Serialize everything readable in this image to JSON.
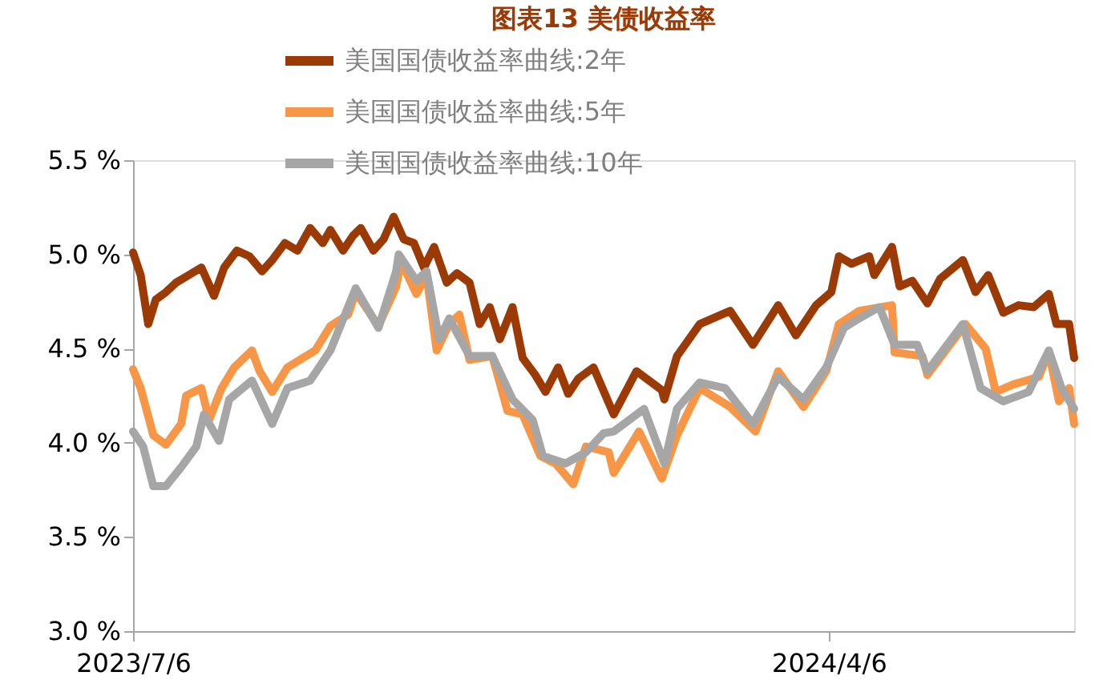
{
  "chart_data": {
    "type": "line",
    "title": "图表13 美债收益率",
    "legend": "top",
    "grid": false,
    "line_style": "solid",
    "xlim": [
      "2023-07-06",
      "2024-07-12"
    ],
    "xticks": [
      {
        "value": "2023-07-06",
        "label": "2023/7/6"
      },
      {
        "value": "2024-04-06",
        "label": "2024/4/6"
      }
    ],
    "ylim": [
      3.0,
      5.5
    ],
    "yticks": [
      {
        "value": 3.0,
        "label": "3.0 %"
      },
      {
        "value": 3.5,
        "label": "3.5 %"
      },
      {
        "value": 4.0,
        "label": "4.0 %"
      },
      {
        "value": 4.5,
        "label": "4.5 %"
      },
      {
        "value": 5.0,
        "label": "5.0 %"
      },
      {
        "value": 5.5,
        "label": "5.5 %"
      }
    ],
    "series": [
      {
        "name": "美国国债收益率曲线:2年",
        "color": "#9c3a06",
        "x": [
          "2023-07-06",
          "2023-07-09",
          "2023-07-12",
          "2023-07-15",
          "2023-07-19",
          "2023-07-23",
          "2023-07-28",
          "2023-08-02",
          "2023-08-07",
          "2023-08-11",
          "2023-08-16",
          "2023-08-21",
          "2023-08-26",
          "2023-08-30",
          "2023-09-04",
          "2023-09-09",
          "2023-09-14",
          "2023-09-19",
          "2023-09-22",
          "2023-09-27",
          "2023-10-01",
          "2023-10-04",
          "2023-10-09",
          "2023-10-13",
          "2023-10-17",
          "2023-10-21",
          "2023-10-25",
          "2023-10-29",
          "2023-11-02",
          "2023-11-07",
          "2023-11-11",
          "2023-11-16",
          "2023-11-20",
          "2023-11-24",
          "2023-11-28",
          "2023-12-03",
          "2023-12-07",
          "2023-12-12",
          "2023-12-16",
          "2023-12-21",
          "2023-12-25",
          "2023-12-29",
          "2024-01-04",
          "2024-01-12",
          "2024-01-21",
          "2024-01-31",
          "2024-02-01",
          "2024-02-06",
          "2024-02-15",
          "2024-02-27",
          "2024-03-07",
          "2024-03-17",
          "2024-03-24",
          "2024-04-01",
          "2024-04-07",
          "2024-04-10",
          "2024-04-15",
          "2024-04-22",
          "2024-04-24",
          "2024-05-01",
          "2024-05-04",
          "2024-05-09",
          "2024-05-15",
          "2024-05-20",
          "2024-05-29",
          "2024-06-03",
          "2024-06-08",
          "2024-06-14",
          "2024-06-20",
          "2024-06-26",
          "2024-07-02",
          "2024-07-05",
          "2024-07-10",
          "2024-07-12"
        ],
        "values": [
          5.01,
          4.89,
          4.63,
          4.76,
          4.8,
          4.85,
          4.89,
          4.93,
          4.78,
          4.93,
          5.02,
          4.99,
          4.91,
          4.97,
          5.06,
          5.02,
          5.14,
          5.06,
          5.13,
          5.02,
          5.1,
          5.14,
          5.02,
          5.08,
          5.2,
          5.08,
          5.06,
          4.93,
          5.04,
          4.85,
          4.9,
          4.85,
          4.63,
          4.72,
          4.55,
          4.72,
          4.45,
          4.36,
          4.27,
          4.4,
          4.26,
          4.34,
          4.4,
          4.15,
          4.38,
          4.28,
          4.23,
          4.46,
          4.63,
          4.7,
          4.52,
          4.73,
          4.57,
          4.73,
          4.8,
          4.99,
          4.95,
          4.99,
          4.89,
          5.04,
          4.83,
          4.86,
          4.74,
          4.87,
          4.97,
          4.8,
          4.89,
          4.69,
          4.73,
          4.72,
          4.79,
          4.63,
          4.63,
          4.45
        ]
      },
      {
        "name": "美国国债收益率曲线:5年",
        "color": "#f79646",
        "x": [
          "2023-07-06",
          "2023-07-09",
          "2023-07-14",
          "2023-07-19",
          "2023-07-25",
          "2023-07-27",
          "2023-08-02",
          "2023-08-05",
          "2023-08-10",
          "2023-08-15",
          "2023-08-22",
          "2023-08-25",
          "2023-08-30",
          "2023-09-05",
          "2023-09-16",
          "2023-09-22",
          "2023-09-29",
          "2023-10-02",
          "2023-10-11",
          "2023-10-18",
          "2023-10-20",
          "2023-10-26",
          "2023-10-30",
          "2023-11-03",
          "2023-11-08",
          "2023-11-12",
          "2023-11-16",
          "2023-11-25",
          "2023-12-01",
          "2023-12-07",
          "2023-12-14",
          "2023-12-20",
          "2023-12-27",
          "2024-01-01",
          "2024-01-10",
          "2024-01-12",
          "2024-01-22",
          "2024-01-31",
          "2024-02-06",
          "2024-02-15",
          "2024-02-27",
          "2024-03-08",
          "2024-03-17",
          "2024-03-27",
          "2024-04-05",
          "2024-04-10",
          "2024-04-18",
          "2024-05-01",
          "2024-05-02",
          "2024-05-13",
          "2024-05-15",
          "2024-05-30",
          "2024-06-07",
          "2024-06-11",
          "2024-06-18",
          "2024-06-28",
          "2024-07-02",
          "2024-07-06",
          "2024-07-10",
          "2024-07-12"
        ],
        "values": [
          4.39,
          4.29,
          4.04,
          3.99,
          4.1,
          4.25,
          4.29,
          4.12,
          4.29,
          4.4,
          4.49,
          4.38,
          4.27,
          4.4,
          4.49,
          4.62,
          4.68,
          4.8,
          4.62,
          4.83,
          4.96,
          4.79,
          4.89,
          4.49,
          4.63,
          4.68,
          4.44,
          4.46,
          4.17,
          4.15,
          3.93,
          3.89,
          3.78,
          3.98,
          3.95,
          3.84,
          4.06,
          3.81,
          4.04,
          4.29,
          4.19,
          4.06,
          4.38,
          4.19,
          4.38,
          4.63,
          4.7,
          4.73,
          4.48,
          4.46,
          4.36,
          4.63,
          4.5,
          4.27,
          4.31,
          4.35,
          4.48,
          4.22,
          4.29,
          4.1
        ]
      },
      {
        "name": "美国国债收益率曲线:10年",
        "color": "#a6a6a6",
        "x": [
          "2023-07-06",
          "2023-07-10",
          "2023-07-14",
          "2023-07-19",
          "2023-07-25",
          "2023-07-31",
          "2023-08-03",
          "2023-08-09",
          "2023-08-13",
          "2023-08-22",
          "2023-08-30",
          "2023-09-05",
          "2023-09-14",
          "2023-09-22",
          "2023-10-02",
          "2023-10-11",
          "2023-10-18",
          "2023-10-19",
          "2023-10-26",
          "2023-10-30",
          "2023-11-04",
          "2023-11-08",
          "2023-11-16",
          "2023-11-25",
          "2023-12-03",
          "2023-12-11",
          "2023-12-15",
          "2023-12-24",
          "2024-01-01",
          "2024-01-08",
          "2024-01-12",
          "2024-01-24",
          "2024-02-01",
          "2024-02-06",
          "2024-02-15",
          "2024-02-25",
          "2024-03-07",
          "2024-03-17",
          "2024-03-27",
          "2024-04-05",
          "2024-04-12",
          "2024-04-18",
          "2024-04-26",
          "2024-05-02",
          "2024-05-11",
          "2024-05-15",
          "2024-05-29",
          "2024-06-05",
          "2024-06-14",
          "2024-06-24",
          "2024-07-02",
          "2024-07-07",
          "2024-07-12"
        ],
        "values": [
          4.06,
          3.98,
          3.77,
          3.77,
          3.87,
          3.98,
          4.15,
          4.01,
          4.23,
          4.33,
          4.1,
          4.29,
          4.33,
          4.49,
          4.82,
          4.61,
          4.91,
          5.0,
          4.86,
          4.91,
          4.55,
          4.66,
          4.46,
          4.46,
          4.23,
          4.12,
          3.93,
          3.89,
          3.95,
          4.05,
          4.06,
          4.18,
          3.89,
          4.18,
          4.32,
          4.29,
          4.1,
          4.35,
          4.23,
          4.4,
          4.61,
          4.66,
          4.72,
          4.52,
          4.52,
          4.38,
          4.63,
          4.29,
          4.22,
          4.27,
          4.49,
          4.29,
          4.18
        ]
      }
    ]
  }
}
